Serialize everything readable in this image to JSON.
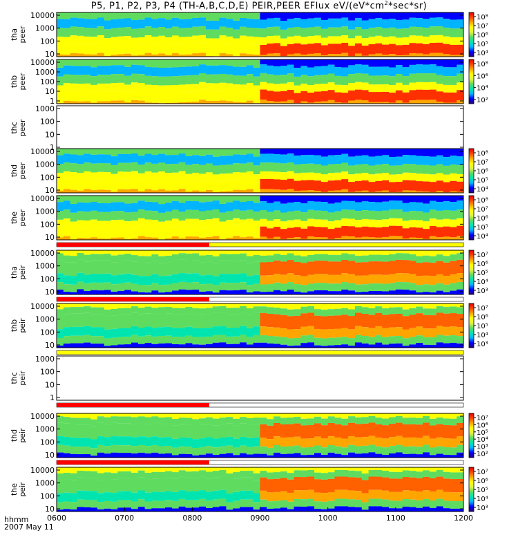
{
  "chart_data": {
    "type": "heatmap",
    "title_main": "P5, P1, P2, P3, P4 (TH-A,B,C,D,E) PEIR,PEER EFlux eV/(eV*cm",
    "title_sup": "2",
    "title_tail": "*sec*sr)",
    "x_axis_label": "hhmm",
    "date_label": "2007 May 11",
    "x_ticks": [
      "0600",
      "0700",
      "0800",
      "0900",
      "1000",
      "1100",
      "1200"
    ],
    "x_range_hours": [
      6.0,
      12.0
    ],
    "colormap": [
      "#2a007f",
      "#0000ff",
      "#00b4ff",
      "#00e5b0",
      "#5fdc5f",
      "#e4f23c",
      "#ffff00",
      "#ffa500",
      "#ff4500",
      "#e00000"
    ],
    "panels": [
      {
        "probe": "tha",
        "species": "peer",
        "y_ticks": [
          "10000",
          "1000",
          "100",
          "10"
        ],
        "cbar_ticks": [
          "10⁸",
          "10⁷",
          "10⁶",
          "10⁵",
          "10⁴"
        ],
        "has_data": true
      },
      {
        "probe": "thb",
        "species": "peer",
        "y_ticks": [
          "10000",
          "1000",
          "100",
          "10",
          "1"
        ],
        "cbar_ticks": [
          "10⁸",
          "10⁶",
          "10⁴",
          "10²"
        ],
        "has_data": true
      },
      {
        "probe": "thc",
        "species": "peer",
        "y_ticks": [
          "1000",
          "100",
          "10",
          "1"
        ],
        "cbar_ticks": [],
        "has_data": false
      },
      {
        "probe": "thd",
        "species": "peer",
        "y_ticks": [
          "10000",
          "1000",
          "100",
          "10"
        ],
        "cbar_ticks": [
          "10⁸",
          "10⁷",
          "10⁶",
          "10⁵",
          "10⁴"
        ],
        "has_data": true
      },
      {
        "probe": "the",
        "species": "peer",
        "y_ticks": [
          "10000",
          "1000",
          "100",
          "10"
        ],
        "cbar_ticks": [
          "10⁸",
          "10⁷",
          "10⁶",
          "10⁵",
          "10⁴"
        ],
        "has_data": true
      },
      {
        "probe": "tha",
        "species": "peir",
        "y_ticks": [
          "10000",
          "1000",
          "100",
          "10"
        ],
        "cbar_ticks": [
          "10⁷",
          "10⁶",
          "10⁵",
          "10⁴",
          "10³"
        ],
        "has_data": true
      },
      {
        "probe": "thb",
        "species": "peir",
        "y_ticks": [
          "10000",
          "1000",
          "100",
          "10"
        ],
        "cbar_ticks": [
          "10⁷",
          "10⁶",
          "10⁵",
          "10⁴",
          "10³"
        ],
        "has_data": true
      },
      {
        "probe": "thc",
        "species": "peir",
        "y_ticks": [
          "1000",
          "100",
          "10",
          "1"
        ],
        "cbar_ticks": [],
        "has_data": false
      },
      {
        "probe": "thd",
        "species": "peir",
        "y_ticks": [
          "10000",
          "1000",
          "100",
          "10"
        ],
        "cbar_ticks": [
          "10⁷",
          "10⁶",
          "10⁵",
          "10⁴",
          "10³",
          "10²"
        ],
        "has_data": true
      },
      {
        "probe": "the",
        "species": "peir",
        "y_ticks": [
          "10000",
          "1000",
          "100",
          "10"
        ],
        "cbar_ticks": [
          "10⁷",
          "10⁶",
          "10⁵",
          "10⁴",
          "10³"
        ],
        "has_data": true
      }
    ],
    "mode_bars": [
      {
        "after_panel": 4,
        "red_span_hours": [
          6.0,
          8.25
        ],
        "fill": "yellow"
      },
      {
        "after_panel": 5,
        "red_span_hours": [
          6.0,
          8.25
        ],
        "fill": "white"
      },
      {
        "after_panel": 6,
        "red_span_hours": [],
        "fill": "yellow"
      },
      {
        "after_panel": 7,
        "red_span_hours": [
          6.0,
          8.25
        ],
        "fill": "white"
      },
      {
        "after_panel": 8,
        "red_span_hours": [
          6.0,
          8.25
        ],
        "fill": "white"
      }
    ]
  }
}
